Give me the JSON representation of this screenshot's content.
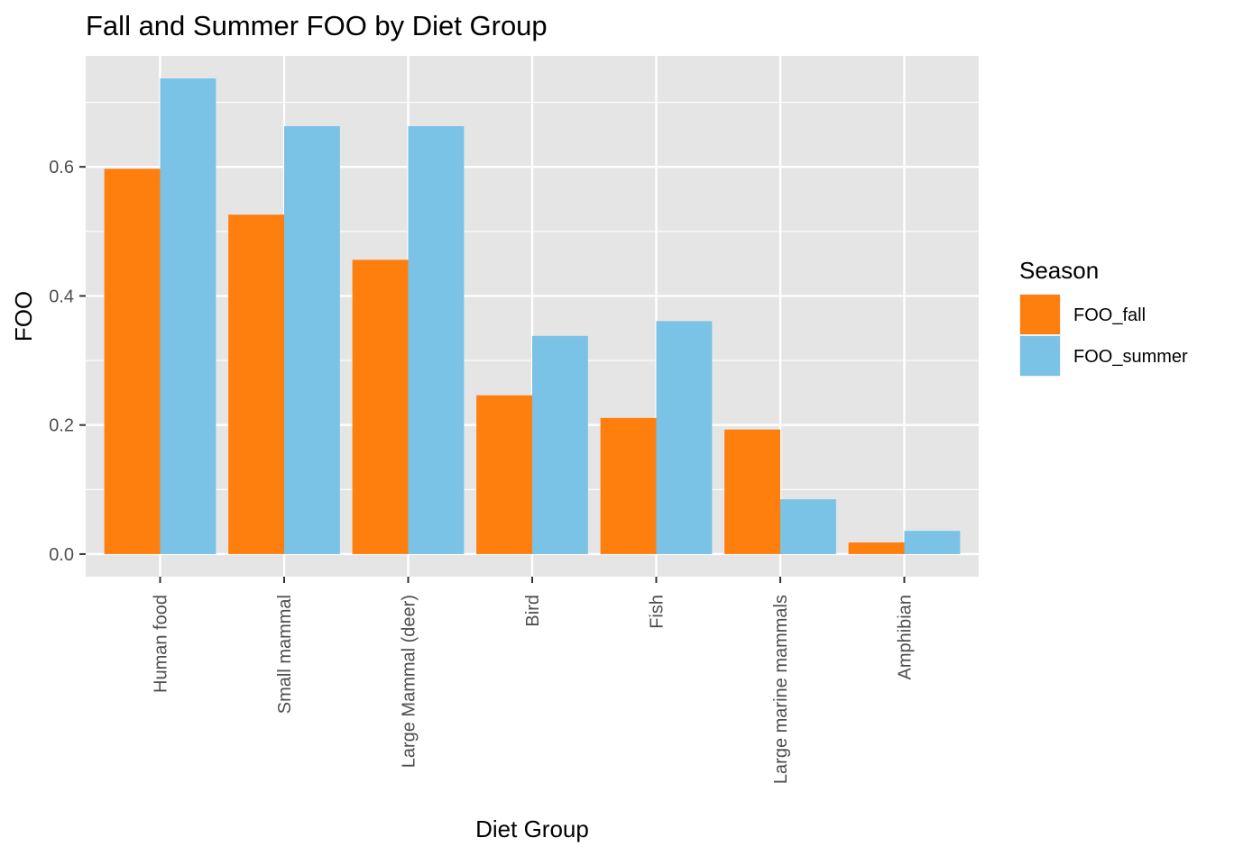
{
  "chart_data": {
    "type": "bar",
    "title": "Fall and Summer FOO by Diet Group",
    "xlabel": "Diet Group",
    "ylabel": "FOO",
    "categories": [
      "Human food",
      "Small mammal",
      "Large Mammal (deer)",
      "Bird",
      "Fish",
      "Large marine mammals",
      "Amphibian"
    ],
    "series": [
      {
        "name": "FOO_fall",
        "color": "#FF7F0E",
        "values": [
          0.597,
          0.526,
          0.456,
          0.246,
          0.211,
          0.193,
          0.018
        ]
      },
      {
        "name": "FOO_summer",
        "color": "#7AC3E6",
        "values": [
          0.737,
          0.663,
          0.663,
          0.338,
          0.361,
          0.085,
          0.036
        ]
      }
    ],
    "ylim": [
      -0.035,
      0.772
    ],
    "yticks": [
      0.0,
      0.2,
      0.4,
      0.6
    ],
    "ytick_labels": [
      "0.0",
      "0.2",
      "0.4",
      "0.6"
    ],
    "grid": true,
    "legend": {
      "title": "Season",
      "placement": "right"
    },
    "panel_background": "#E5E5E5",
    "grid_color": "#FFFFFF"
  }
}
